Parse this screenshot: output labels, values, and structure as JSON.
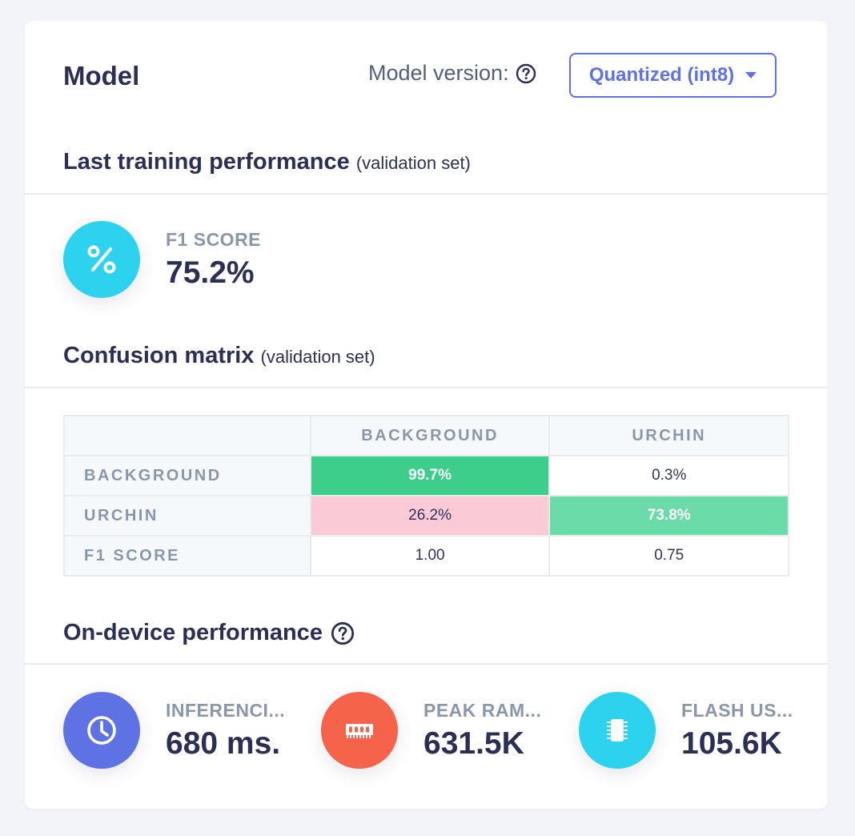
{
  "header": {
    "title": "Model",
    "version_label": "Model version:",
    "version_selected": "Quantized (int8)"
  },
  "training": {
    "heading": "Last training performance",
    "heading_sub": "(validation set)",
    "f1_label": "F1 SCORE",
    "f1_value": "75.2%"
  },
  "confusion": {
    "heading": "Confusion matrix",
    "heading_sub": "(validation set)",
    "columns": [
      "BACKGROUND",
      "URCHIN"
    ],
    "rows": [
      {
        "label": "BACKGROUND",
        "cells": [
          "99.7%",
          "0.3%"
        ]
      },
      {
        "label": "URCHIN",
        "cells": [
          "26.2%",
          "73.8%"
        ]
      },
      {
        "label": "F1 SCORE",
        "cells": [
          "1.00",
          "0.75"
        ]
      }
    ]
  },
  "on_device": {
    "heading": "On-device performance",
    "stats": [
      {
        "label": "INFERENCI...",
        "value": "680 ms.",
        "icon": "clock-icon",
        "color": "#5e72e4"
      },
      {
        "label": "PEAK RAM...",
        "value": "631.5K",
        "icon": "memory-icon",
        "color": "#f5634a"
      },
      {
        "label": "FLASH US...",
        "value": "105.6K",
        "icon": "chip-icon",
        "color": "#2dd3ee"
      }
    ]
  },
  "colors": {
    "accent": "#5e72e4",
    "f1_circle": "#2dd3ee",
    "matrix_good": "#3cce8a",
    "matrix_mid": "#6adba9",
    "matrix_bad": "#fbcad7"
  }
}
